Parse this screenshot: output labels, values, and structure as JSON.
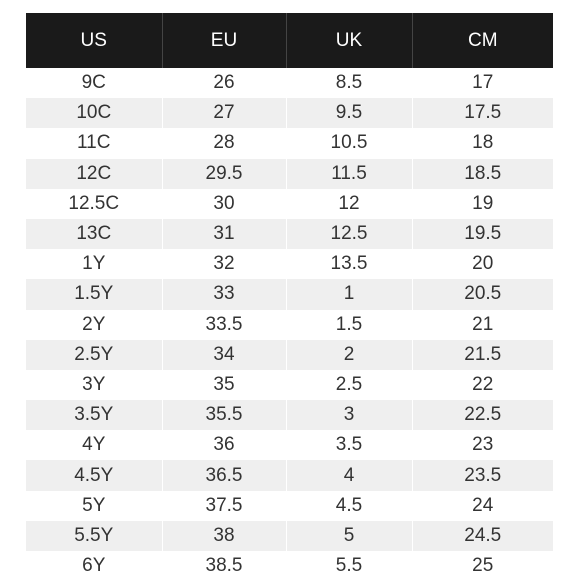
{
  "table": {
    "headers": [
      "US",
      "EU",
      "UK",
      "CM"
    ],
    "rows": [
      [
        "9C",
        "26",
        "8.5",
        "17"
      ],
      [
        "10C",
        "27",
        "9.5",
        "17.5"
      ],
      [
        "11C",
        "28",
        "10.5",
        "18"
      ],
      [
        "12C",
        "29.5",
        "11.5",
        "18.5"
      ],
      [
        "12.5C",
        "30",
        "12",
        "19"
      ],
      [
        "13C",
        "31",
        "12.5",
        "19.5"
      ],
      [
        "1Y",
        "32",
        "13.5",
        "20"
      ],
      [
        "1.5Y",
        "33",
        "1",
        "20.5"
      ],
      [
        "2Y",
        "33.5",
        "1.5",
        "21"
      ],
      [
        "2.5Y",
        "34",
        "2",
        "21.5"
      ],
      [
        "3Y",
        "35",
        "2.5",
        "22"
      ],
      [
        "3.5Y",
        "35.5",
        "3",
        "22.5"
      ],
      [
        "4Y",
        "36",
        "3.5",
        "23"
      ],
      [
        "4.5Y",
        "36.5",
        "4",
        "23.5"
      ],
      [
        "5Y",
        "37.5",
        "4.5",
        "24"
      ],
      [
        "5.5Y",
        "38",
        "5",
        "24.5"
      ],
      [
        "6Y",
        "38.5",
        "5.5",
        "25"
      ]
    ]
  },
  "colors": {
    "header_background": "#1a1a1a",
    "header_text": "#ffffff",
    "row_stripe": "#efefef",
    "cell_text": "#333333"
  }
}
